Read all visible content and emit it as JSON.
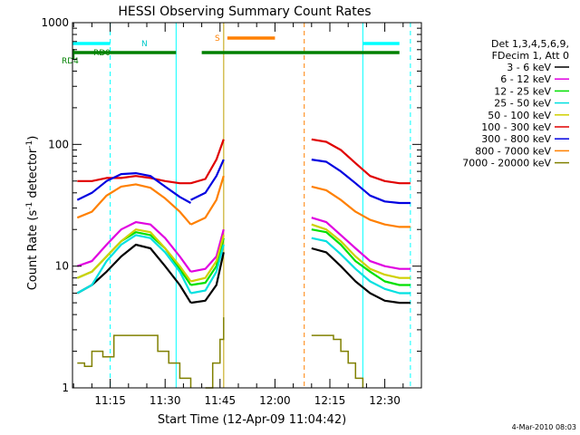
{
  "chart_data": {
    "type": "line",
    "title": "HESSI Observing Summary Count Rates",
    "xlabel": "Start Time (12-Apr-09 11:04:42)",
    "ylabel": "Count Rate (s⁻¹ detector⁻¹)",
    "ylabel_parts": {
      "base": "Count Rate (s",
      "sup1": "-1",
      "mid": " detector",
      "sup2": "-1",
      "end": ")"
    },
    "yscale": "log",
    "ylim": [
      1,
      1000
    ],
    "xlim": [
      "11:04:42",
      "12:40:00"
    ],
    "xticks": [
      "11:15",
      "11:30",
      "11:45",
      "12:00",
      "12:15",
      "12:30"
    ],
    "yticks": [
      "1",
      "10",
      "100",
      "1000"
    ],
    "grid": false,
    "legend": {
      "placement": "right",
      "header": [
        "Det 1,3,4,5,6,9,",
        "FDecim 1, Att 0"
      ],
      "entries": [
        {
          "label": "3 - 6 keV",
          "color": "#000000"
        },
        {
          "label": "6 - 12 keV",
          "color": "#e000e0"
        },
        {
          "label": "12 - 25 keV",
          "color": "#00e000"
        },
        {
          "label": "25 - 50 keV",
          "color": "#00e0e0"
        },
        {
          "label": "50 - 100 keV",
          "color": "#d0d000"
        },
        {
          "label": "100 - 300 keV",
          "color": "#e00000"
        },
        {
          "label": "300 - 800 keV",
          "color": "#0000e0"
        },
        {
          "label": "800 - 7000 keV",
          "color": "#ff8000"
        },
        {
          "label": "7000 - 20000 keV",
          "color": "#808000"
        }
      ]
    },
    "series": [
      {
        "name": "3 - 6 keV",
        "color": "#000000",
        "segments": [
          {
            "x": [
              "11:06",
              "11:10",
              "11:14",
              "11:18",
              "11:22",
              "11:26",
              "11:30",
              "11:34",
              "11:37"
            ],
            "y": [
              6,
              7,
              9,
              12,
              15,
              14,
              10,
              7,
              5
            ]
          },
          {
            "x": [
              "11:37",
              "11:41",
              "11:44",
              "11:46"
            ],
            "y": [
              5,
              5.2,
              7,
              13
            ]
          },
          {
            "x": [
              "12:10",
              "12:14",
              "12:18",
              "12:22",
              "12:26",
              "12:30",
              "12:34",
              "12:37"
            ],
            "y": [
              14,
              13,
              10,
              7.5,
              6,
              5.2,
              5,
              5
            ]
          }
        ]
      },
      {
        "name": "6 - 12 keV",
        "color": "#e000e0",
        "segments": [
          {
            "x": [
              "11:06",
              "11:10",
              "11:14",
              "11:18",
              "11:22",
              "11:26",
              "11:30",
              "11:34",
              "11:37"
            ],
            "y": [
              10,
              11,
              15,
              20,
              23,
              22,
              17,
              12,
              9
            ]
          },
          {
            "x": [
              "11:37",
              "11:41",
              "11:44",
              "11:46"
            ],
            "y": [
              9,
              9.5,
              12,
              20
            ]
          },
          {
            "x": [
              "12:10",
              "12:14",
              "12:18",
              "12:22",
              "12:26",
              "12:30",
              "12:34",
              "12:37"
            ],
            "y": [
              25,
              23,
              18,
              14,
              11,
              10,
              9.5,
              9.5
            ]
          }
        ]
      },
      {
        "name": "12 - 25 keV",
        "color": "#00e000",
        "segments": [
          {
            "x": [
              "11:06",
              "11:10",
              "11:14",
              "11:18",
              "11:22",
              "11:26",
              "11:30",
              "11:34",
              "11:37"
            ],
            "y": [
              8,
              9,
              12,
              16,
              19,
              18,
              14,
              9.5,
              7
            ]
          },
          {
            "x": [
              "11:37",
              "11:41",
              "11:44",
              "11:46"
            ],
            "y": [
              7,
              7.3,
              10,
              17
            ]
          },
          {
            "x": [
              "12:10",
              "12:14",
              "12:18",
              "12:22",
              "12:26",
              "12:30",
              "12:34",
              "12:37"
            ],
            "y": [
              20,
              19,
              15,
              11,
              9,
              7.5,
              7,
              7
            ]
          }
        ]
      },
      {
        "name": "25 - 50 keV",
        "color": "#00e0e0",
        "segments": [
          {
            "x": [
              "11:06",
              "11:10",
              "11:14",
              "11:18",
              "11:22",
              "11:26",
              "11:30",
              "11:34",
              "11:37"
            ],
            "y": [
              6,
              7,
              11,
              15,
              18,
              17,
              13,
              9,
              6
            ]
          },
          {
            "x": [
              "11:37",
              "11:41",
              "11:44",
              "11:46"
            ],
            "y": [
              6,
              6.3,
              9,
              15
            ]
          },
          {
            "x": [
              "12:10",
              "12:14",
              "12:18",
              "12:22",
              "12:26",
              "12:30",
              "12:34",
              "12:37"
            ],
            "y": [
              17,
              16,
              12.5,
              9.5,
              7.5,
              6.5,
              6,
              6
            ]
          }
        ]
      },
      {
        "name": "50 - 100 keV",
        "color": "#d0d000",
        "segments": [
          {
            "x": [
              "11:06",
              "11:10",
              "11:14",
              "11:18",
              "11:22",
              "11:26",
              "11:30",
              "11:34",
              "11:37"
            ],
            "y": [
              8,
              9,
              12,
              16,
              20,
              19,
              14,
              10,
              7.5
            ]
          },
          {
            "x": [
              "11:37",
              "11:41",
              "11:44",
              "11:46"
            ],
            "y": [
              7.5,
              8,
              11,
              18
            ]
          },
          {
            "x": [
              "12:10",
              "12:14",
              "12:18",
              "12:22",
              "12:26",
              "12:30",
              "12:34",
              "12:37"
            ],
            "y": [
              22,
              20,
              16,
              12,
              9.5,
              8.5,
              8,
              8
            ]
          }
        ]
      },
      {
        "name": "100 - 300 keV",
        "color": "#e00000",
        "segments": [
          {
            "x": [
              "11:06",
              "11:10",
              "11:14",
              "11:18",
              "11:22",
              "11:26",
              "11:30",
              "11:34",
              "11:37"
            ],
            "y": [
              50,
              50,
              53,
              53,
              55,
              53,
              50,
              48,
              48
            ]
          },
          {
            "x": [
              "11:37",
              "11:41",
              "11:44",
              "11:46"
            ],
            "y": [
              48,
              52,
              75,
              110
            ]
          },
          {
            "x": [
              "12:10",
              "12:14",
              "12:18",
              "12:22",
              "12:26",
              "12:30",
              "12:34",
              "12:37"
            ],
            "y": [
              110,
              105,
              90,
              70,
              55,
              50,
              48,
              48
            ]
          }
        ]
      },
      {
        "name": "300 - 800 keV",
        "color": "#0000e0",
        "segments": [
          {
            "x": [
              "11:06",
              "11:10",
              "11:14",
              "11:18",
              "11:22",
              "11:26",
              "11:30",
              "11:34",
              "11:37"
            ],
            "y": [
              35,
              40,
              50,
              57,
              58,
              55,
              45,
              37,
              33
            ]
          },
          {
            "x": [
              "11:37",
              "11:41",
              "11:44",
              "11:46"
            ],
            "y": [
              35,
              40,
              55,
              75
            ]
          },
          {
            "x": [
              "12:10",
              "12:14",
              "12:18",
              "12:22",
              "12:26",
              "12:30",
              "12:34",
              "12:37"
            ],
            "y": [
              75,
              72,
              60,
              48,
              38,
              34,
              33,
              33
            ]
          }
        ]
      },
      {
        "name": "800 - 7000 keV",
        "color": "#ff8000",
        "segments": [
          {
            "x": [
              "11:06",
              "11:10",
              "11:14",
              "11:18",
              "11:22",
              "11:26",
              "11:30",
              "11:34",
              "11:37"
            ],
            "y": [
              25,
              28,
              38,
              45,
              47,
              44,
              36,
              28,
              22
            ]
          },
          {
            "x": [
              "11:37",
              "11:41",
              "11:44",
              "11:46"
            ],
            "y": [
              22,
              25,
              35,
              55
            ]
          },
          {
            "x": [
              "12:10",
              "12:14",
              "12:18",
              "12:22",
              "12:26",
              "12:30",
              "12:34",
              "12:37"
            ],
            "y": [
              45,
              42,
              35,
              28,
              24,
              22,
              21,
              21
            ]
          }
        ]
      },
      {
        "name": "7000 - 20000 keV",
        "color": "#808000",
        "segments": [
          {
            "x": [
              "11:06",
              "11:08",
              "11:10",
              "11:13",
              "11:16",
              "11:19",
              "11:22",
              "11:25",
              "11:28",
              "11:31",
              "11:34",
              "11:37"
            ],
            "y": [
              1.6,
              1.5,
              2.0,
              1.8,
              2.7,
              2.7,
              2.7,
              2.7,
              2.0,
              1.6,
              1.2,
              1.0
            ]
          },
          {
            "x": [
              "11:41",
              "11:43",
              "11:45",
              "11:46"
            ],
            "y": [
              1.0,
              1.6,
              2.5,
              3.8
            ]
          },
          {
            "x": [
              "12:10",
              "12:12",
              "12:14",
              "12:16",
              "12:18",
              "12:20",
              "12:22",
              "12:24"
            ],
            "y": [
              2.7,
              2.7,
              2.7,
              2.5,
              2.0,
              1.6,
              1.2,
              1.0
            ]
          }
        ]
      }
    ],
    "flag_annotations": {
      "labels": [
        "N",
        "RD0",
        "RD4",
        "S"
      ],
      "flag_lines": [
        {
          "label": "N",
          "color": "#00ffff",
          "segments": [
            [
              "11:04:42",
              "11:15"
            ],
            [
              "12:24",
              "12:34"
            ]
          ]
        },
        {
          "label": "S",
          "color": "#ff8000",
          "segments": [
            [
              "11:47",
              "12:00"
            ]
          ]
        },
        {
          "label": "RD4",
          "color": "#008000",
          "segments": [
            [
              "11:05",
              "11:33"
            ],
            [
              "11:40",
              "12:34"
            ]
          ]
        }
      ],
      "vertical_markers": [
        {
          "x": "11:15",
          "color": "#00ffff",
          "style": "dashed"
        },
        {
          "x": "11:33",
          "color": "#00ffff",
          "style": "solid"
        },
        {
          "x": "11:46",
          "color": "#c0a000",
          "style": "solid"
        },
        {
          "x": "12:08",
          "color": "#ff8000",
          "style": "dashed"
        },
        {
          "x": "12:24",
          "color": "#00ffff",
          "style": "solid"
        },
        {
          "x": "12:37",
          "color": "#00ffff",
          "style": "dashed"
        }
      ]
    }
  },
  "footer": {
    "timestamp": "4-Mar-2010 08:03"
  },
  "colors": {
    "background": "#ffffff",
    "axis": "#000000"
  }
}
